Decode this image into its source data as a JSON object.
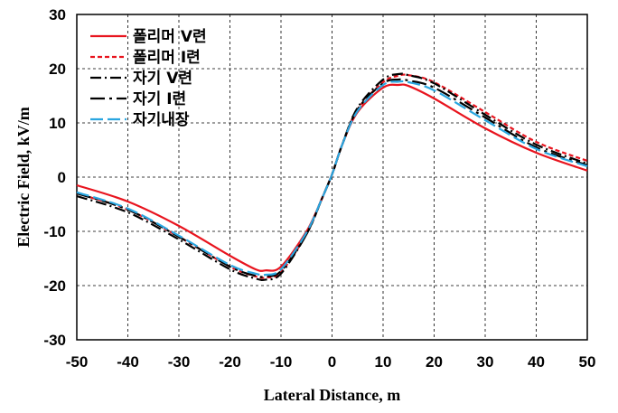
{
  "chart_data": {
    "type": "line",
    "xlabel": "Lateral Distance, m",
    "ylabel": "Electric Field, kV/m",
    "xlim": [
      -50,
      50
    ],
    "ylim": [
      -30,
      30
    ],
    "x_ticks": [
      -50,
      -40,
      -30,
      -20,
      -10,
      0,
      10,
      20,
      30,
      40,
      50
    ],
    "y_ticks": [
      -30,
      -20,
      -10,
      0,
      10,
      20,
      30
    ],
    "grid": true,
    "legend_position": "top-left",
    "x": [
      -50,
      -40,
      -30,
      -20,
      -15,
      -13,
      -10,
      -5,
      -2,
      0,
      2,
      5,
      10,
      13,
      15,
      20,
      30,
      40,
      50
    ],
    "series": [
      {
        "name": "폴리머 V련",
        "color": "#e8141e",
        "dash": "solid",
        "values": [
          -1.5,
          -4.5,
          -9,
          -14.5,
          -17,
          -17.2,
          -16.5,
          -10,
          -4,
          0.5,
          6,
          12,
          16.5,
          17,
          16.8,
          14.5,
          9,
          4.5,
          1.2
        ]
      },
      {
        "name": "폴리머 I련",
        "color": "#e8141e",
        "dash": "short-dash",
        "values": [
          -3,
          -6,
          -11,
          -16.5,
          -18.3,
          -18.5,
          -17.5,
          -10.5,
          -4,
          0.5,
          6,
          12.5,
          17.5,
          18.7,
          18.8,
          17.5,
          12,
          6.5,
          3
        ]
      },
      {
        "name": "자기 V련",
        "color": "#000000",
        "dash": "dash-dot",
        "values": [
          -3.5,
          -6.5,
          -11.5,
          -17,
          -18.7,
          -18.9,
          -17.8,
          -10.5,
          -4,
          0.5,
          6,
          12.8,
          18,
          19,
          18.8,
          17.3,
          11.5,
          6,
          2.5
        ]
      },
      {
        "name": "자기 I련",
        "color": "#000000",
        "dash": "long-dash-dot",
        "values": [
          -3,
          -6,
          -11,
          -16.5,
          -18.2,
          -18.3,
          -17.3,
          -10.5,
          -4,
          0.5,
          6,
          12.5,
          17.3,
          18,
          17.8,
          16.5,
          11,
          5.5,
          2.2
        ]
      },
      {
        "name": "자기내장",
        "color": "#2aa6e0",
        "dash": "long-dash",
        "values": [
          -2.8,
          -5.8,
          -10.8,
          -16.2,
          -17.8,
          -18,
          -17,
          -10.2,
          -4,
          0.5,
          6,
          12.2,
          17,
          17.6,
          17.5,
          16,
          10.5,
          5.2,
          2
        ]
      }
    ]
  }
}
